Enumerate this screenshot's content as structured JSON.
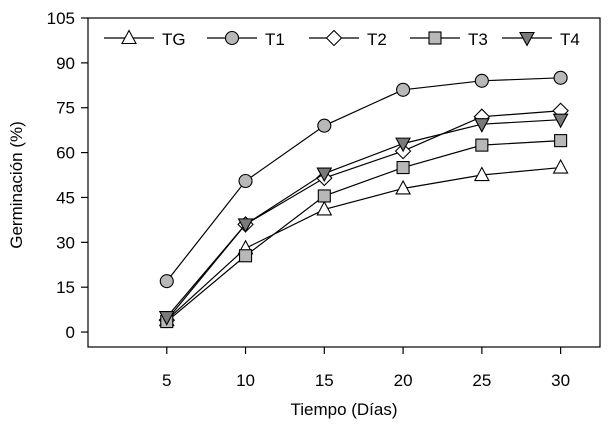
{
  "chart_data": {
    "type": "line",
    "title": "",
    "xlabel": "Tiempo (Días)",
    "ylabel": "Germinación (%)",
    "x": [
      5,
      10,
      15,
      20,
      25,
      30
    ],
    "xticks": [
      "5",
      "10",
      "15",
      "20",
      "25",
      "30"
    ],
    "yticks": [
      "0",
      "15",
      "30",
      "45",
      "60",
      "75",
      "90",
      "105"
    ],
    "xlim": [
      0,
      32.5
    ],
    "ylim": [
      -5,
      105
    ],
    "grid": false,
    "legend": "top",
    "series": [
      {
        "name": "TG",
        "marker": "triangle-up",
        "fill": "#ffffff",
        "values": [
          4,
          28,
          41,
          48,
          52.5,
          55
        ]
      },
      {
        "name": "T1",
        "marker": "circle",
        "fill": "#b8b8b8",
        "values": [
          17,
          50.5,
          69,
          81,
          84,
          85
        ]
      },
      {
        "name": "T2",
        "marker": "diamond",
        "fill": "#ffffff",
        "values": [
          4,
          36,
          51.5,
          60.5,
          72,
          74
        ]
      },
      {
        "name": "T3",
        "marker": "square",
        "fill": "#b8b8b8",
        "values": [
          3.5,
          25.5,
          45.5,
          55,
          62.5,
          64
        ]
      },
      {
        "name": "T4",
        "marker": "triangle-down",
        "fill": "#7a7a7a",
        "values": [
          5,
          36,
          53,
          63,
          69.5,
          71
        ]
      }
    ]
  }
}
